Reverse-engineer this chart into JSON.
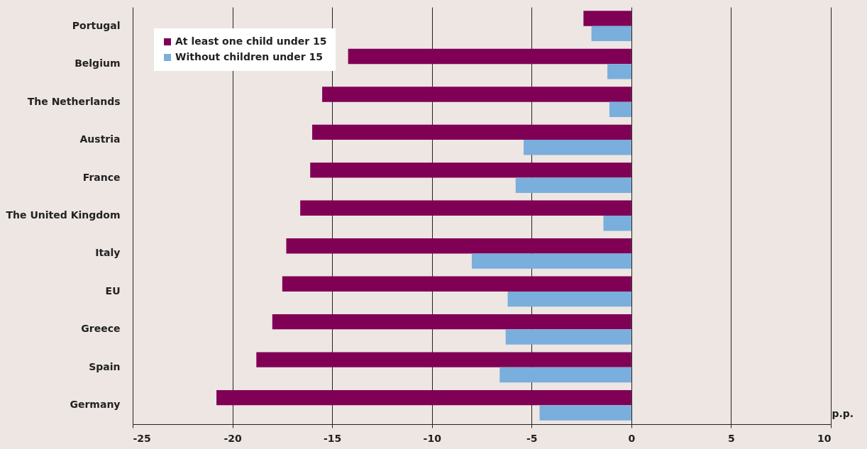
{
  "chart_data": {
    "type": "bar",
    "orientation": "horizontal",
    "xlabel": "p.p.",
    "categories": [
      "Portugal",
      "Belgium",
      "The Netherlands",
      "Austria",
      "France",
      "The United Kingdom",
      "Italy",
      "EU",
      "Greece",
      "Spain",
      "Germany"
    ],
    "series": [
      {
        "name": "At least one child under 15",
        "color": "#800055",
        "values": [
          -2.4,
          -14.2,
          -15.5,
          -16.0,
          -16.1,
          -16.6,
          -17.3,
          -17.5,
          -18.0,
          -18.8,
          -20.8
        ]
      },
      {
        "name": "Without children under 15",
        "color": "#7aaedc",
        "values": [
          -2.0,
          -1.2,
          -1.1,
          -5.4,
          -5.8,
          -1.4,
          -8.0,
          -6.2,
          -6.3,
          -6.6,
          -4.6
        ]
      }
    ],
    "xlim": [
      -25,
      10
    ],
    "xticks": [
      -25,
      -20,
      -15,
      -10,
      -5,
      0,
      5,
      10
    ],
    "grid": "x",
    "legend": "top left"
  }
}
